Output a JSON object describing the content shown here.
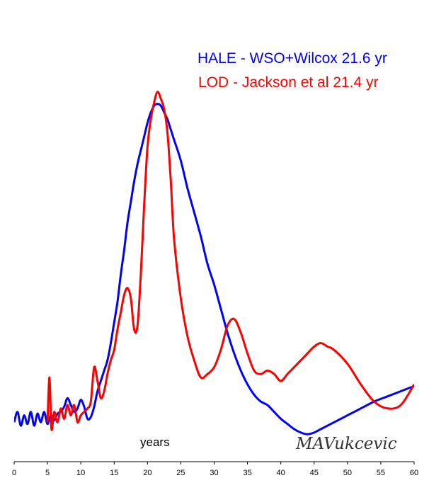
{
  "chart_data": {
    "type": "line",
    "xlabel": "years",
    "xlim": [
      0,
      60
    ],
    "ylim": [
      0,
      1
    ],
    "x_ticks": [
      "0",
      "5",
      "10",
      "15",
      "20",
      "25",
      "30",
      "35",
      "40",
      "45",
      "50",
      "55",
      "60"
    ],
    "grid": false,
    "legend_position": "top-right",
    "signature": "MAVukcevic",
    "series": [
      {
        "name": "HALE - WSO+Wilcox 21.6 yr",
        "color": "#0000ff",
        "x": [
          0,
          0.5,
          1,
          1.5,
          2,
          2.5,
          3,
          3.5,
          4,
          4.5,
          5,
          5.5,
          6,
          6.5,
          7,
          7.5,
          8,
          8.5,
          9,
          9.5,
          10,
          10.5,
          11,
          11.5,
          12,
          12.5,
          13,
          13.5,
          14,
          14.5,
          15,
          15.5,
          16,
          16.5,
          17,
          17.5,
          18,
          18.5,
          19,
          19.5,
          20,
          20.5,
          21,
          21.5,
          22,
          22.5,
          23,
          23.5,
          24,
          25,
          26,
          27,
          28,
          29,
          30,
          31,
          32,
          33,
          34,
          35,
          36,
          37,
          38,
          39,
          40,
          41,
          42,
          43,
          44,
          45,
          46,
          48,
          50,
          52,
          54,
          56,
          58,
          60
        ],
        "y": [
          0.02,
          0.05,
          0.01,
          0.04,
          0.015,
          0.05,
          0.01,
          0.045,
          0.02,
          0.05,
          0.015,
          0.04,
          0.025,
          0.045,
          0.05,
          0.065,
          0.09,
          0.07,
          0.05,
          0.06,
          0.085,
          0.065,
          0.03,
          0.035,
          0.065,
          0.11,
          0.14,
          0.17,
          0.2,
          0.25,
          0.31,
          0.37,
          0.45,
          0.52,
          0.6,
          0.66,
          0.72,
          0.77,
          0.81,
          0.85,
          0.89,
          0.92,
          0.94,
          0.945,
          0.94,
          0.92,
          0.9,
          0.87,
          0.84,
          0.78,
          0.7,
          0.63,
          0.56,
          0.48,
          0.42,
          0.35,
          0.28,
          0.22,
          0.17,
          0.13,
          0.1,
          0.08,
          0.07,
          0.05,
          0.03,
          0.015,
          0.0,
          -0.01,
          -0.015,
          -0.01,
          0.0,
          0.02,
          0.04,
          0.06,
          0.08,
          0.095,
          0.11,
          0.125
        ]
      },
      {
        "name": "LOD - Jackson et al  21.4 yr",
        "color": "#ff0000",
        "x": [
          5,
          5.3,
          5.6,
          6,
          6.5,
          7,
          7.5,
          8,
          8.5,
          9,
          9.5,
          10,
          10.5,
          11,
          11.5,
          12,
          12.5,
          13,
          13.5,
          14,
          14.5,
          15,
          15.5,
          16,
          16.5,
          17,
          17.5,
          18,
          18.5,
          19,
          19.5,
          20,
          20.5,
          21,
          21.5,
          22,
          22.5,
          23,
          23.5,
          24,
          25,
          26,
          27,
          28,
          29,
          30,
          31,
          32,
          33,
          34,
          35,
          36,
          37,
          38,
          39,
          40,
          41,
          42,
          43,
          44,
          45,
          46,
          47,
          48,
          50,
          52,
          54,
          56,
          58,
          60
        ],
        "y": [
          0.02,
          0.15,
          0.0,
          0.05,
          0.02,
          0.06,
          0.03,
          0.07,
          0.04,
          0.07,
          0.02,
          0.04,
          0.05,
          0.06,
          0.08,
          0.18,
          0.14,
          0.09,
          0.11,
          0.16,
          0.2,
          0.23,
          0.29,
          0.34,
          0.39,
          0.41,
          0.38,
          0.29,
          0.3,
          0.45,
          0.65,
          0.82,
          0.9,
          0.95,
          0.98,
          0.96,
          0.93,
          0.86,
          0.72,
          0.55,
          0.38,
          0.27,
          0.2,
          0.15,
          0.16,
          0.18,
          0.23,
          0.3,
          0.32,
          0.28,
          0.22,
          0.17,
          0.16,
          0.17,
          0.16,
          0.14,
          0.16,
          0.18,
          0.2,
          0.22,
          0.24,
          0.25,
          0.24,
          0.23,
          0.19,
          0.13,
          0.08,
          0.06,
          0.07,
          0.13
        ]
      }
    ]
  }
}
